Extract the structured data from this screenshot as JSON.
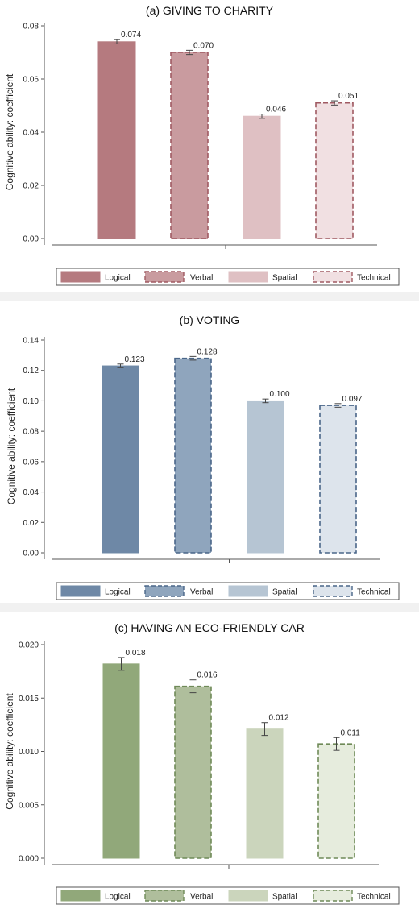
{
  "chart_data": [
    {
      "type": "bar",
      "title": "(a) GIVING TO CHARITY",
      "ylabel": "Cognitive ability: coefficient",
      "categories": [
        "Logical",
        "Verbal",
        "Spatial",
        "Technical"
      ],
      "values": [
        0.074,
        0.07,
        0.046,
        0.051
      ],
      "value_labels": [
        "0.074",
        "0.070",
        "0.046",
        "0.051"
      ],
      "errors": [
        0.0008,
        0.0008,
        0.0008,
        0.0008
      ],
      "ylim": [
        0,
        0.08
      ],
      "yticks": [
        0,
        0.02,
        0.04,
        0.06,
        0.08
      ],
      "ytick_labels": [
        "0.00",
        "0.02",
        "0.04",
        "0.06",
        "0.08"
      ],
      "colors": [
        "#b57a7f",
        "#c99b9f",
        "#dfc0c3",
        "#f1e0e2"
      ],
      "edge_color": "#a05a62",
      "dashed": [
        false,
        true,
        false,
        true
      ],
      "legend": [
        "Logical",
        "Verbal",
        "Spatial",
        "Technical"
      ],
      "legend_placement": "bottom",
      "grid": false
    },
    {
      "type": "bar",
      "title": "(b) VOTING",
      "ylabel": "Cognitive ability: coefficient",
      "categories": [
        "Logical",
        "Verbal",
        "Spatial",
        "Technical"
      ],
      "values": [
        0.123,
        0.128,
        0.1,
        0.097
      ],
      "value_labels": [
        "0.123",
        "0.128",
        "0.100",
        "0.097"
      ],
      "errors": [
        0.0012,
        0.0012,
        0.0012,
        0.0012
      ],
      "ylim": [
        0,
        0.14
      ],
      "yticks": [
        0,
        0.02,
        0.04,
        0.06,
        0.08,
        0.1,
        0.12,
        0.14
      ],
      "ytick_labels": [
        "0.00",
        "0.02",
        "0.04",
        "0.06",
        "0.08",
        "0.10",
        "0.12",
        "0.14"
      ],
      "colors": [
        "#6e88a6",
        "#8fa5bd",
        "#b6c5d3",
        "#dde4ec"
      ],
      "edge_color": "#4a6689",
      "dashed": [
        false,
        true,
        false,
        true
      ],
      "legend": [
        "Logical",
        "Verbal",
        "Spatial",
        "Technical"
      ],
      "legend_placement": "bottom",
      "grid": false
    },
    {
      "type": "bar",
      "title": "(c) HAVING AN ECO-FRIENDLY CAR",
      "ylabel": "Cognitive ability: coefficient",
      "categories": [
        "Logical",
        "Verbal",
        "Spatial",
        "Technical"
      ],
      "values": [
        0.018,
        0.016,
        0.012,
        0.011
      ],
      "display_values": [
        0.0182,
        0.0161,
        0.0121,
        0.0107
      ],
      "value_labels": [
        "0.018",
        "0.016",
        "0.012",
        "0.011"
      ],
      "errors": [
        0.0006,
        0.0006,
        0.0006,
        0.0006
      ],
      "ylim": [
        0,
        0.02
      ],
      "yticks": [
        0,
        0.005,
        0.01,
        0.015,
        0.02
      ],
      "ytick_labels": [
        "0.000",
        "0.005",
        "0.010",
        "0.015",
        "0.020"
      ],
      "colors": [
        "#91a87a",
        "#afbe9c",
        "#cbd5bc",
        "#e6ecdd"
      ],
      "edge_color": "#6f8a58",
      "dashed": [
        false,
        true,
        false,
        true
      ],
      "legend": [
        "Logical",
        "Verbal",
        "Spatial",
        "Technical"
      ],
      "legend_placement": "bottom",
      "grid": false
    }
  ]
}
